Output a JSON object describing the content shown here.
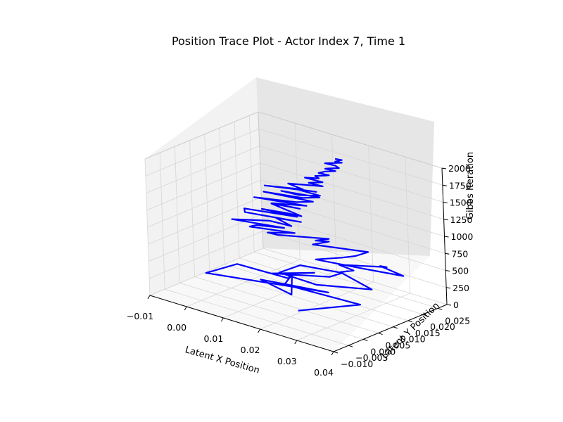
{
  "chart_data": {
    "type": "line3d",
    "title": "Position Trace Plot - Actor Index 7, Time 1",
    "xlabel": "Latent X Position",
    "ylabel": "Latent Y Position",
    "zlabel": "Gibbs Iteration",
    "xlim": [
      -0.01,
      0.04
    ],
    "ylim": [
      -0.01,
      0.028
    ],
    "zlim": [
      0,
      2000
    ],
    "xticks": [
      -0.01,
      0.0,
      0.01,
      0.02,
      0.03,
      0.04
    ],
    "xtick_labels": [
      "−0.01",
      "0.00",
      "0.01",
      "0.02",
      "0.03",
      "0.04"
    ],
    "yticks": [
      -0.01,
      -0.005,
      0.0,
      0.005,
      0.01,
      0.015,
      0.02,
      0.025
    ],
    "ytick_labels": [
      "−0.010",
      "−0.005",
      "0.000",
      "0.005",
      "0.010",
      "0.015",
      "0.020",
      "0.025"
    ],
    "zticks": [
      0,
      250,
      500,
      750,
      1000,
      1250,
      1500,
      1750,
      2000
    ],
    "ztick_labels": [
      "0",
      "250",
      "500",
      "750",
      "1000",
      "1250",
      "1500",
      "1750",
      "2000"
    ],
    "grid": true,
    "series": [
      {
        "color": "#0000ff",
        "points": [
          [
            0.019,
            0.004,
            0
          ],
          [
            0.027,
            0.015,
            20
          ],
          [
            0.008,
            0.013,
            40
          ],
          [
            0.006,
            0.018,
            60
          ],
          [
            0.014,
            0.008,
            80
          ],
          [
            0.004,
            0.01,
            100
          ],
          [
            0.02,
            0.013,
            120
          ],
          [
            -0.006,
            0.004,
            140
          ],
          [
            -0.004,
            0.012,
            160
          ],
          [
            0.01,
            0.012,
            180
          ],
          [
            0.009,
            0.014,
            200
          ],
          [
            0.013,
            0.017,
            220
          ],
          [
            0.007,
            0.01,
            240
          ],
          [
            0.018,
            0.016,
            260
          ],
          [
            0.019,
            0.019,
            280
          ],
          [
            0.01,
            0.016,
            300
          ],
          [
            0.01,
            0.009,
            320
          ],
          [
            0.021,
            0.008,
            340
          ],
          [
            0.032,
            0.013,
            360
          ],
          [
            0.021,
            0.016,
            380
          ],
          [
            0.023,
            0.018,
            400
          ],
          [
            0.019,
            0.018,
            420
          ],
          [
            0.028,
            0.023,
            440
          ],
          [
            0.027,
            0.022,
            460
          ],
          [
            0.035,
            0.02,
            480
          ],
          [
            0.026,
            0.017,
            500
          ],
          [
            0.016,
            0.014,
            520
          ],
          [
            0.02,
            0.018,
            540
          ],
          [
            0.022,
            0.02,
            560
          ],
          [
            0.023,
            0.023,
            580
          ],
          [
            0.012,
            0.018,
            600
          ],
          [
            0.014,
            0.021,
            620
          ],
          [
            0.012,
            0.019,
            640
          ],
          [
            0.014,
            0.021,
            660
          ],
          [
            0.005,
            0.015,
            680
          ],
          [
            0.003,
            0.014,
            700
          ],
          [
            0.008,
            0.017,
            720
          ],
          [
            -0.001,
            0.013,
            740
          ],
          [
            0.0,
            0.014,
            760
          ],
          [
            0.006,
            0.016,
            780
          ],
          [
            -0.005,
            0.012,
            800
          ],
          [
            0.002,
            0.016,
            820
          ],
          [
            0.008,
            0.016,
            840
          ],
          [
            0.003,
            0.017,
            860
          ],
          [
            0.009,
            0.018,
            880
          ],
          [
            -0.003,
            0.014,
            900
          ],
          [
            -0.004,
            0.015,
            920
          ],
          [
            0.008,
            0.018,
            940
          ],
          [
            0.0,
            0.016,
            960
          ],
          [
            0.006,
            0.017,
            980
          ],
          [
            0.01,
            0.017,
            1000
          ],
          [
            0.001,
            0.018,
            1020
          ],
          [
            0.008,
            0.019,
            1040
          ],
          [
            0.002,
            0.017,
            1060
          ],
          [
            0.009,
            0.02,
            1080
          ],
          [
            -0.002,
            0.016,
            1100
          ],
          [
            0.007,
            0.019,
            1120
          ],
          [
            0.01,
            0.021,
            1140
          ],
          [
            -0.001,
            0.018,
            1160
          ],
          [
            0.008,
            0.02,
            1180
          ],
          [
            0.011,
            0.022,
            1200
          ],
          [
            0.003,
            0.019,
            1220
          ],
          [
            0.008,
            0.019,
            1240
          ],
          [
            0.012,
            0.021,
            1260
          ],
          [
            0.006,
            0.02,
            1280
          ],
          [
            0.011,
            0.021,
            1300
          ],
          [
            0.001,
            0.016,
            1320
          ],
          [
            0.009,
            0.019,
            1340
          ],
          [
            0.005,
            0.019,
            1360
          ],
          [
            0.012,
            0.022,
            1380
          ],
          [
            0.009,
            0.021,
            1400
          ],
          [
            0.011,
            0.022,
            1420
          ],
          [
            0.012,
            0.022,
            1440
          ],
          [
            0.008,
            0.021,
            1460
          ],
          [
            0.011,
            0.022,
            1480
          ],
          [
            0.01,
            0.022,
            1500
          ],
          [
            0.012,
            0.023,
            1520
          ],
          [
            0.013,
            0.023,
            1540
          ],
          [
            0.011,
            0.022,
            1560
          ],
          [
            0.012,
            0.023,
            1580
          ],
          [
            0.014,
            0.024,
            1600
          ],
          [
            0.012,
            0.023,
            1620
          ],
          [
            0.013,
            0.023,
            1640
          ],
          [
            0.015,
            0.024,
            1660
          ],
          [
            0.014,
            0.024,
            1680
          ],
          [
            0.012,
            0.023,
            1700
          ],
          [
            0.015,
            0.025,
            1720
          ],
          [
            0.014,
            0.024,
            1740
          ],
          [
            0.015,
            0.025,
            1760
          ],
          [
            0.014,
            0.024,
            1780
          ]
        ]
      }
    ]
  }
}
